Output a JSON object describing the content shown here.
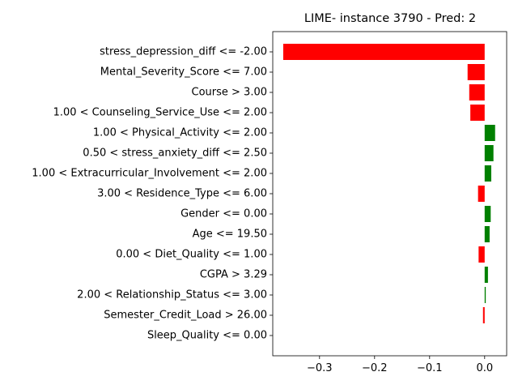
{
  "chart_data": {
    "type": "bar",
    "orientation": "horizontal",
    "title": "LIME- instance 3790 - Pred: 2",
    "xlabel": "",
    "ylabel": "",
    "xlim": [
      -0.385,
      0.04
    ],
    "xticks": [
      -0.3,
      -0.2,
      -0.1,
      0.0
    ],
    "xtick_labels": [
      "−0.3",
      "−0.2",
      "−0.1",
      "0.0"
    ],
    "grid": false,
    "legend": "none",
    "colors": {
      "positive": "#008000",
      "negative": "#ff0000",
      "axis": "#000000"
    },
    "categories": [
      "stress_depression_diff <= -2.00",
      "Mental_Severity_Score <= 7.00",
      "Course > 3.00",
      "1.00 < Counseling_Service_Use <= 2.00",
      "1.00 < Physical_Activity <= 2.00",
      "0.50 < stress_anxiety_diff <= 2.50",
      "1.00 < Extracurricular_Involvement <= 2.00",
      "3.00 < Residence_Type <= 6.00",
      "Gender <= 0.00",
      "Age <= 19.50",
      "0.00 < Diet_Quality <= 1.00",
      "CGPA > 3.29",
      "2.00 < Relationship_Status <= 3.00",
      "Semester_Credit_Load > 26.00",
      "Sleep_Quality <= 0.00"
    ],
    "values": [
      -0.366,
      -0.031,
      -0.028,
      -0.026,
      0.019,
      0.016,
      0.012,
      -0.012,
      0.011,
      0.009,
      -0.011,
      0.006,
      0.002,
      -0.003,
      0.0
    ]
  }
}
